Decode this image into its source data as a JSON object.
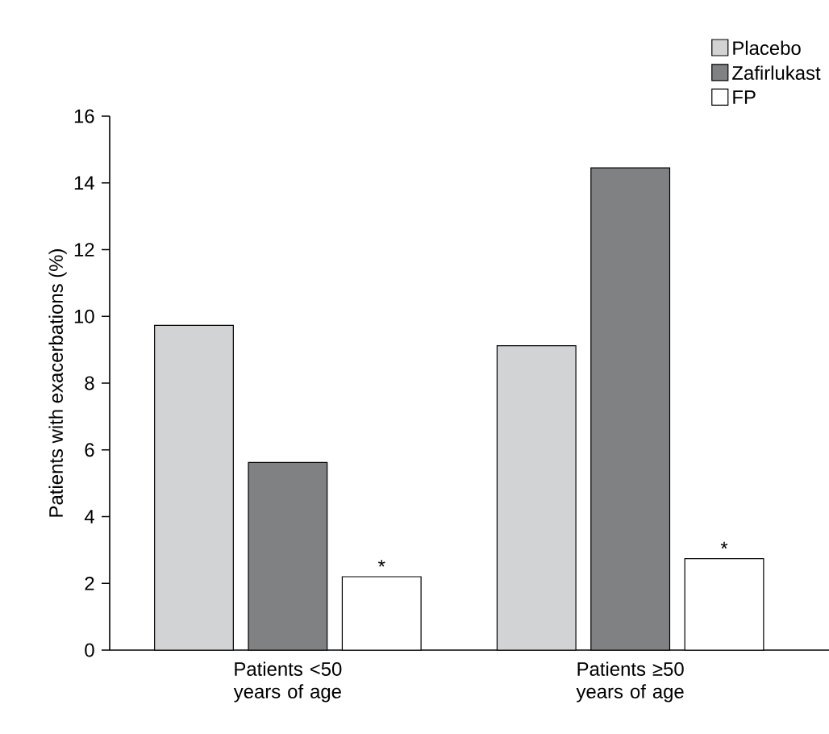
{
  "chart_data": {
    "type": "bar",
    "ylabel": "Patients with exacerbations (%)",
    "categories": [
      "Patients <50 years of age",
      "Patients ≥50 years of age"
    ],
    "series": [
      {
        "name": "Placebo",
        "color": "#d2d3d5",
        "values": [
          9.73,
          9.12
        ]
      },
      {
        "name": "Zafirlukast",
        "color": "#808183",
        "values": [
          5.62,
          14.45
        ]
      },
      {
        "name": "FP",
        "color": "#ffffff",
        "values": [
          2.2,
          2.74
        ]
      }
    ],
    "ylim": [
      0,
      16
    ],
    "yticks": [
      0,
      2,
      4,
      6,
      8,
      10,
      12,
      14,
      16
    ],
    "legend": "top right",
    "annotations": [
      "*",
      "*"
    ]
  }
}
